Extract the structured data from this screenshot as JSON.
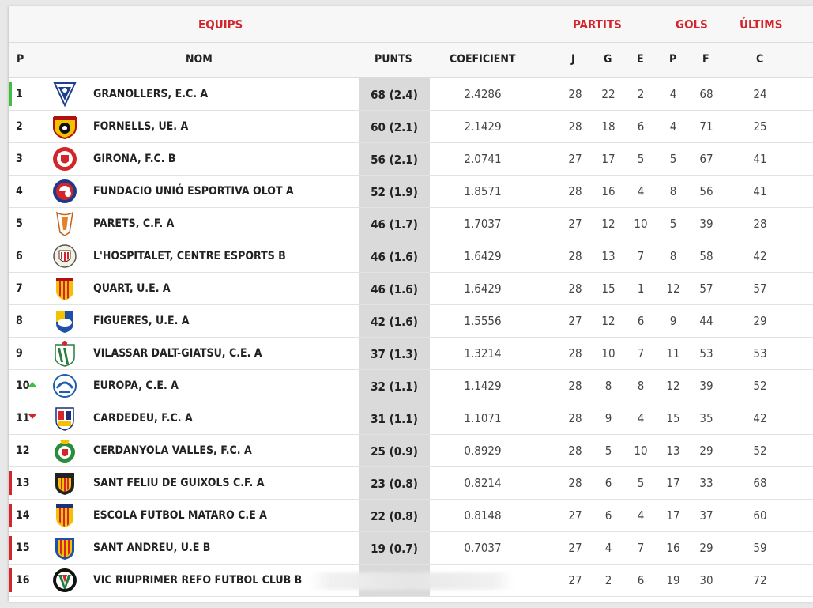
{
  "headers": {
    "groups": {
      "equips": "EQUIPS",
      "partits": "PARTITS",
      "gols": "GOLS",
      "ultims": "ÚLTIMS"
    },
    "columns": {
      "p": "P",
      "nom": "NOM",
      "punts": "PUNTS",
      "coeficient": "COEFICIENT",
      "j": "J",
      "g": "G",
      "e": "E",
      "pp": "P",
      "f": "F",
      "c": "C"
    }
  },
  "colors": {
    "accent": "#d2262c",
    "promotion": "#3fbf3f",
    "relegation": "#d2262c",
    "points_bg": "#dadada"
  },
  "rows": [
    {
      "pos": "1",
      "zone": "green",
      "trend": "",
      "crest": "crest-granollers-icon",
      "team": "GRANOLLERS, E.C. A",
      "pts": "68 (2.4)",
      "coef": "2.4286",
      "j": "28",
      "g": "22",
      "e": "2",
      "p": "4",
      "f": "68",
      "c": "24"
    },
    {
      "pos": "2",
      "zone": "",
      "trend": "",
      "crest": "crest-fornells-icon",
      "team": "FORNELLS, UE. A",
      "pts": "60 (2.1)",
      "coef": "2.1429",
      "j": "28",
      "g": "18",
      "e": "6",
      "p": "4",
      "f": "71",
      "c": "25"
    },
    {
      "pos": "3",
      "zone": "",
      "trend": "",
      "crest": "crest-girona-icon",
      "team": "GIRONA, F.C. B",
      "pts": "56 (2.1)",
      "coef": "2.0741",
      "j": "27",
      "g": "17",
      "e": "5",
      "p": "5",
      "f": "67",
      "c": "41"
    },
    {
      "pos": "4",
      "zone": "",
      "trend": "",
      "crest": "crest-olot-icon",
      "team": "FUNDACIO UNIÓ ESPORTIVA OLOT A",
      "pts": "52 (1.9)",
      "coef": "1.8571",
      "j": "28",
      "g": "16",
      "e": "4",
      "p": "8",
      "f": "56",
      "c": "41"
    },
    {
      "pos": "5",
      "zone": "",
      "trend": "",
      "crest": "crest-parets-icon",
      "team": "PARETS, C.F. A",
      "pts": "46 (1.7)",
      "coef": "1.7037",
      "j": "27",
      "g": "12",
      "e": "10",
      "p": "5",
      "f": "39",
      "c": "28"
    },
    {
      "pos": "6",
      "zone": "",
      "trend": "",
      "crest": "crest-hospitalet-icon",
      "team": "L'HOSPITALET, CENTRE ESPORTS B",
      "pts": "46 (1.6)",
      "coef": "1.6429",
      "j": "28",
      "g": "13",
      "e": "7",
      "p": "8",
      "f": "58",
      "c": "42"
    },
    {
      "pos": "7",
      "zone": "",
      "trend": "",
      "crest": "crest-quart-icon",
      "team": "QUART, U.E. A",
      "pts": "46 (1.6)",
      "coef": "1.6429",
      "j": "28",
      "g": "15",
      "e": "1",
      "p": "12",
      "f": "57",
      "c": "57"
    },
    {
      "pos": "8",
      "zone": "",
      "trend": "",
      "crest": "crest-figueres-icon",
      "team": "FIGUERES, U.E. A",
      "pts": "42 (1.6)",
      "coef": "1.5556",
      "j": "27",
      "g": "12",
      "e": "6",
      "p": "9",
      "f": "44",
      "c": "29"
    },
    {
      "pos": "9",
      "zone": "",
      "trend": "",
      "crest": "crest-vilassar-icon",
      "team": "VILASSAR DALT-GIATSU, C.E. A",
      "pts": "37 (1.3)",
      "coef": "1.3214",
      "j": "28",
      "g": "10",
      "e": "7",
      "p": "11",
      "f": "53",
      "c": "53"
    },
    {
      "pos": "10",
      "zone": "",
      "trend": "up",
      "crest": "crest-europa-icon",
      "team": "EUROPA, C.E. A",
      "pts": "32 (1.1)",
      "coef": "1.1429",
      "j": "28",
      "g": "8",
      "e": "8",
      "p": "12",
      "f": "39",
      "c": "52"
    },
    {
      "pos": "11",
      "zone": "",
      "trend": "down",
      "crest": "crest-cardedeu-icon",
      "team": "CARDEDEU, F.C. A",
      "pts": "31 (1.1)",
      "coef": "1.1071",
      "j": "28",
      "g": "9",
      "e": "4",
      "p": "15",
      "f": "35",
      "c": "42"
    },
    {
      "pos": "12",
      "zone": "",
      "trend": "",
      "crest": "crest-cerdanyola-icon",
      "team": "CERDANYOLA VALLES, F.C. A",
      "pts": "25 (0.9)",
      "coef": "0.8929",
      "j": "28",
      "g": "5",
      "e": "10",
      "p": "13",
      "f": "29",
      "c": "52"
    },
    {
      "pos": "13",
      "zone": "red",
      "trend": "",
      "crest": "crest-guixols-icon",
      "team": "SANT FELIU DE GUIXOLS C.F. A",
      "pts": "23 (0.8)",
      "coef": "0.8214",
      "j": "28",
      "g": "6",
      "e": "5",
      "p": "17",
      "f": "33",
      "c": "68"
    },
    {
      "pos": "14",
      "zone": "red",
      "trend": "",
      "crest": "crest-mataro-icon",
      "team": "ESCOLA FUTBOL MATARO C.E A",
      "pts": "22 (0.8)",
      "coef": "0.8148",
      "j": "27",
      "g": "6",
      "e": "4",
      "p": "17",
      "f": "37",
      "c": "60"
    },
    {
      "pos": "15",
      "zone": "red",
      "trend": "",
      "crest": "crest-sant-andreu-icon",
      "team": "SANT ANDREU, U.E B",
      "pts": "19 (0.7)",
      "coef": "0.7037",
      "j": "27",
      "g": "4",
      "e": "7",
      "p": "16",
      "f": "29",
      "c": "59"
    },
    {
      "pos": "16",
      "zone": "red",
      "trend": "",
      "crest": "crest-vic-icon",
      "team": "VIC RIUPRIMER REFO FUTBOL CLUB B",
      "pts": "",
      "coef": "",
      "j": "27",
      "g": "2",
      "e": "6",
      "p": "19",
      "f": "30",
      "c": "72"
    }
  ]
}
